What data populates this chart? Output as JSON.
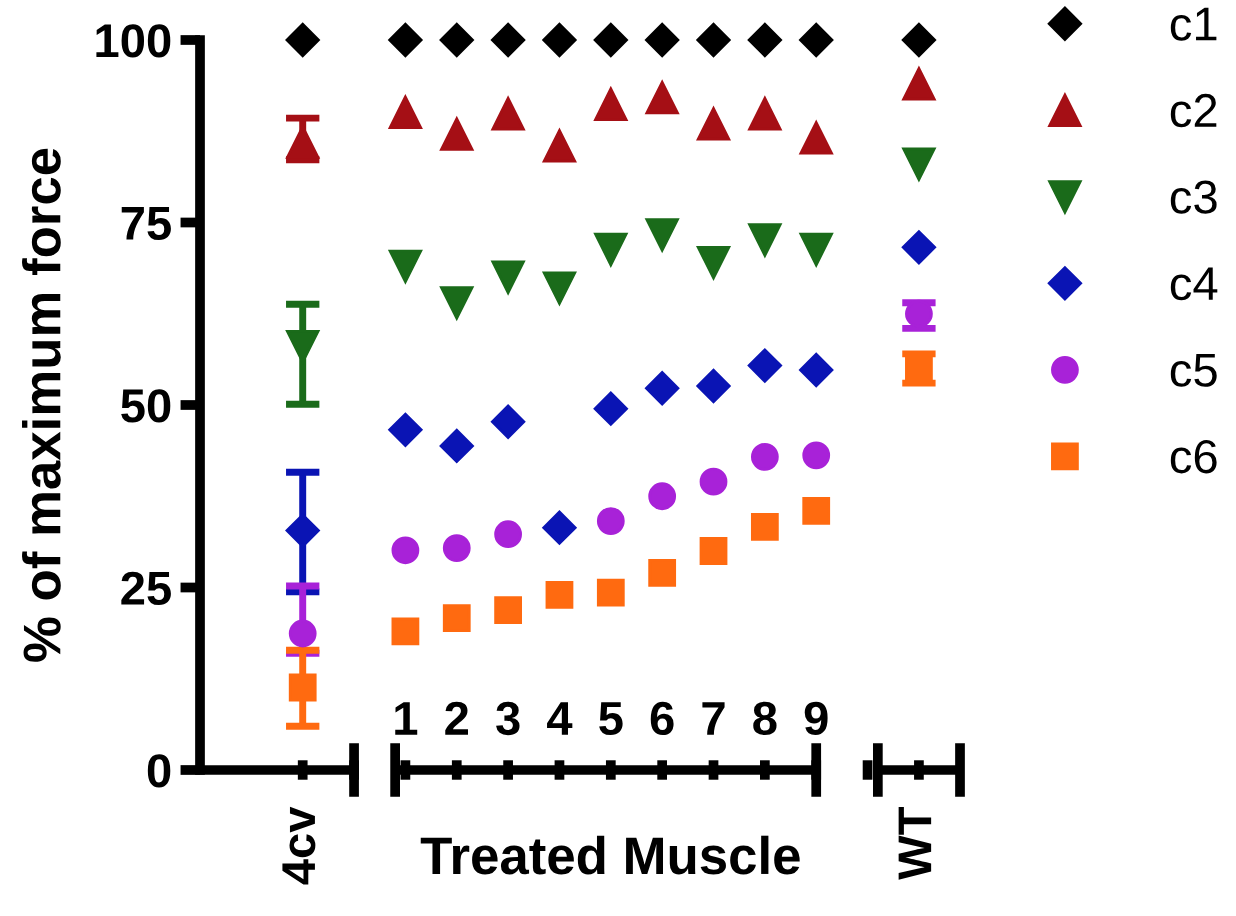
{
  "chart_data": {
    "type": "scatter",
    "ylabel": "% of maximum force",
    "xlabel": "Treated Muscle",
    "categories": [
      "4cv",
      null,
      "1",
      "2",
      "3",
      "4",
      "5",
      "6",
      "7",
      "8",
      "9",
      null,
      "WT"
    ],
    "ylim": [
      0,
      100
    ],
    "yticks": [
      0,
      25,
      50,
      75,
      100
    ],
    "grid": false,
    "legend": "right",
    "series": [
      {
        "name": "c1",
        "color": "#000000",
        "marker": "diamond",
        "values": [
          100,
          null,
          100,
          100,
          100,
          100,
          100,
          100,
          100,
          100,
          100,
          null,
          100
        ]
      },
      {
        "name": "c2",
        "color": "#a50f15",
        "marker": "triangle",
        "values": [
          86,
          null,
          90.1,
          87.1,
          89.9,
          85.5,
          91.2,
          92.1,
          88.5,
          89.9,
          86.6,
          null,
          94
        ],
        "errors": [
          [
            83.6,
            89.3
          ],
          null,
          null,
          null,
          null,
          null,
          null,
          null,
          null,
          null,
          null,
          null,
          null
        ]
      },
      {
        "name": "c3",
        "color": "#1a6b1a",
        "marker": "triangle_down",
        "values": [
          58,
          null,
          69,
          64,
          67.5,
          66,
          71.3,
          73.3,
          69.5,
          72.6,
          71.3,
          null,
          83
        ],
        "errors": [
          [
            50.1,
            63.8
          ],
          null,
          null,
          null,
          null,
          null,
          null,
          null,
          null,
          null,
          null,
          null,
          null
        ]
      },
      {
        "name": "c4",
        "color": "#0a14b4",
        "marker": "diamond",
        "values": [
          32.8,
          null,
          46.6,
          44.4,
          47.7,
          33.2,
          49.5,
          52.3,
          52.6,
          55.4,
          54.8,
          null,
          71.6
        ],
        "errors": [
          [
            24.4,
            40.8
          ],
          null,
          null,
          null,
          null,
          null,
          null,
          null,
          null,
          null,
          null,
          null,
          null
        ]
      },
      {
        "name": "c5",
        "color": "#a822d8",
        "marker": "circle",
        "values": [
          18.7,
          null,
          30.1,
          30.4,
          32.3,
          null,
          34.1,
          37.5,
          39.5,
          42.9,
          43.1,
          null,
          62.5
        ],
        "errors": [
          [
            16,
            25.2
          ],
          null,
          null,
          null,
          null,
          null,
          null,
          null,
          null,
          null,
          null,
          null,
          [
            60.5,
            64
          ]
        ]
      },
      {
        "name": "c6",
        "color": "#ff6a10",
        "marker": "square",
        "values": [
          11.3,
          null,
          19,
          20.8,
          21.9,
          24,
          24.3,
          27,
          30,
          33.3,
          35.5,
          null,
          55
        ],
        "errors": [
          [
            6,
            16.4
          ],
          null,
          null,
          null,
          null,
          null,
          null,
          null,
          null,
          null,
          null,
          null,
          [
            53,
            57
          ]
        ]
      }
    ]
  }
}
